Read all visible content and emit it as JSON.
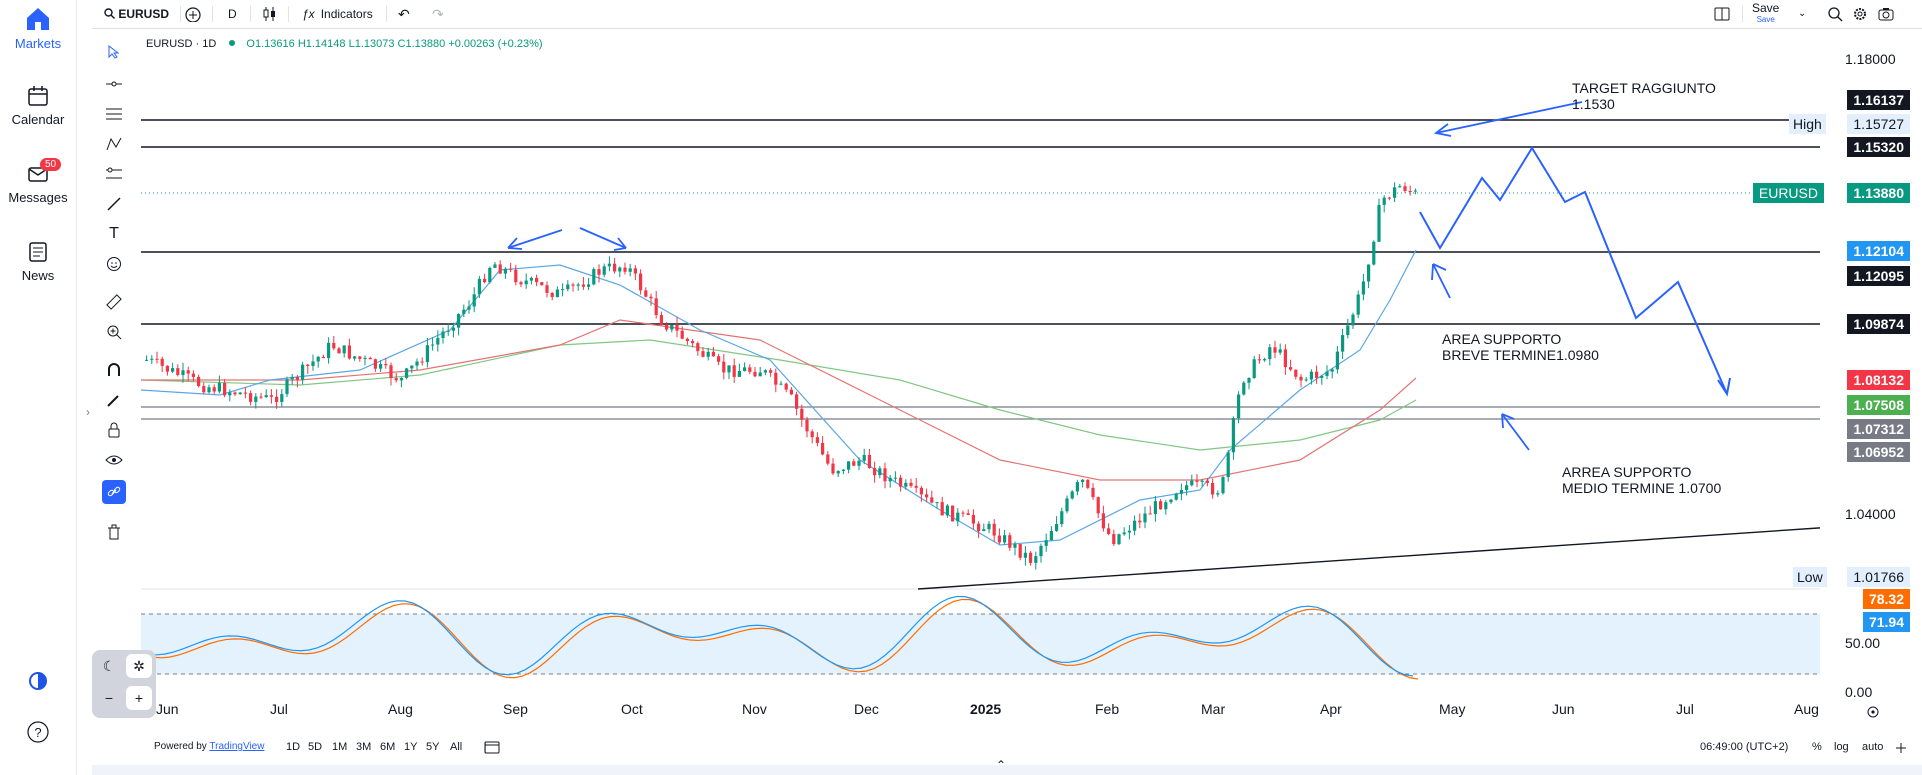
{
  "nav": {
    "items": [
      {
        "label": "Markets",
        "icon": "home-icon"
      },
      {
        "label": "Calendar",
        "icon": "calendar-icon"
      },
      {
        "label": "Messages",
        "icon": "mail-icon",
        "badge": "50"
      },
      {
        "label": "News",
        "icon": "news-icon"
      }
    ]
  },
  "toolbar": {
    "symbol": "EURUSD",
    "interval": "D",
    "indicators_label": "Indicators",
    "save_label": "Save",
    "save_sub": "Save"
  },
  "legend": {
    "symbol": "EURUSD · 1D",
    "open": "O1.13616",
    "high": "H1.14148",
    "low": "L1.13073",
    "close": "C1.13880",
    "change": "+0.00263 (+0.23%)"
  },
  "price_scale": {
    "ticks": [
      "1.18000",
      "1.04000",
      "50.00",
      "0.00"
    ],
    "labels": [
      {
        "text": "1.16137",
        "color": "#131722"
      },
      {
        "text": "1.15727",
        "color": "#e3effd",
        "dark": true
      },
      {
        "text": "1.15320",
        "color": "#131722"
      },
      {
        "text": "1.13880",
        "color": "#089981"
      },
      {
        "text": "1.12104",
        "color": "#2196f3"
      },
      {
        "text": "1.12095",
        "color": "#131722"
      },
      {
        "text": "1.09874",
        "color": "#131722"
      },
      {
        "text": "1.08132",
        "color": "#f23645"
      },
      {
        "text": "1.07508",
        "color": "#4caf50"
      },
      {
        "text": "1.07312",
        "color": "#787b86"
      },
      {
        "text": "1.06952",
        "color": "#787b86"
      },
      {
        "text": "1.01766",
        "color": "#e3effd",
        "dark": true
      },
      {
        "text": "78.32",
        "color": "#ff6d00"
      },
      {
        "text": "71.94",
        "color": "#2196f3"
      }
    ],
    "high_label": "High",
    "low_label": "Low",
    "symbol_label": "EURUSD"
  },
  "time_axis": {
    "months": [
      "Jun",
      "Jul",
      "Aug",
      "Sep",
      "Oct",
      "Nov",
      "Dec",
      "2025",
      "Feb",
      "Mar",
      "Apr",
      "May",
      "Jun",
      "Jul",
      "Aug"
    ]
  },
  "annotations": {
    "target": "TARGET RAGGIUNTO\n1.1530",
    "area_breve": "AREA SUPPORTO\nBREVE TERMINE1.0980",
    "area_medio": "ARREA SUPPORTO\nMEDIO TERMINE 1.0700"
  },
  "bottom": {
    "powered": "Powered by",
    "tradingview": "TradingView",
    "ranges": [
      "1D",
      "5D",
      "1M",
      "3M",
      "6M",
      "1Y",
      "5Y",
      "All"
    ],
    "time": "06:49:00 (UTC+2)",
    "pct": "%",
    "log": "log",
    "auto": "auto"
  },
  "colors": {
    "accent": "#2962ff",
    "up": "#089981",
    "down": "#f23645",
    "ma_fast": "#5aa7e6",
    "ma_mid": "#e57373",
    "ma_slow": "#81c784"
  }
}
